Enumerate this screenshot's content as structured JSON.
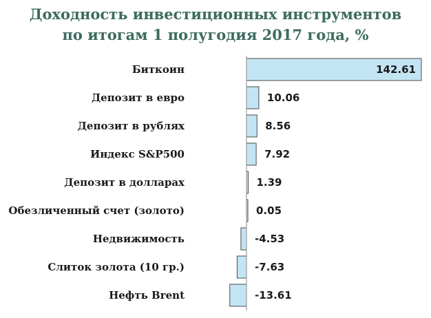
{
  "chart_data": {
    "type": "bar",
    "orientation": "horizontal",
    "title": "Доходность инвестиционных инструментов по итогам 1 полугодия 2017 года, %",
    "title_lines": [
      "Доходность инвестиционных инструментов",
      "по итогам 1 полугодия 2017 года, %"
    ],
    "categories": [
      "Биткоин",
      "Депозит в евро",
      "Депозит в рублях",
      "Индекс S&P500",
      "Депозит в долларах",
      "Обезличенный счет (золото)",
      "Недвижимость",
      "Слиток золота (10 гр.)",
      "Нефть Brent"
    ],
    "values": [
      142.61,
      10.06,
      8.56,
      7.92,
      1.39,
      0.05,
      -4.53,
      -7.63,
      -13.61
    ],
    "value_labels": [
      "142.61",
      "10.06",
      "8.56",
      "7.92",
      "1.39",
      "0.05",
      "-4.53",
      "-7.63",
      "-13.61"
    ],
    "xlim": [
      -16,
      145
    ],
    "grid": false,
    "legend": "none",
    "xlabel": "",
    "ylabel": "",
    "colors": {
      "bar_fill": "#c3e5f3",
      "bar_stroke": "#4a4a4a",
      "axis": "#8a8a8a",
      "title": "#3d6b5f"
    }
  }
}
